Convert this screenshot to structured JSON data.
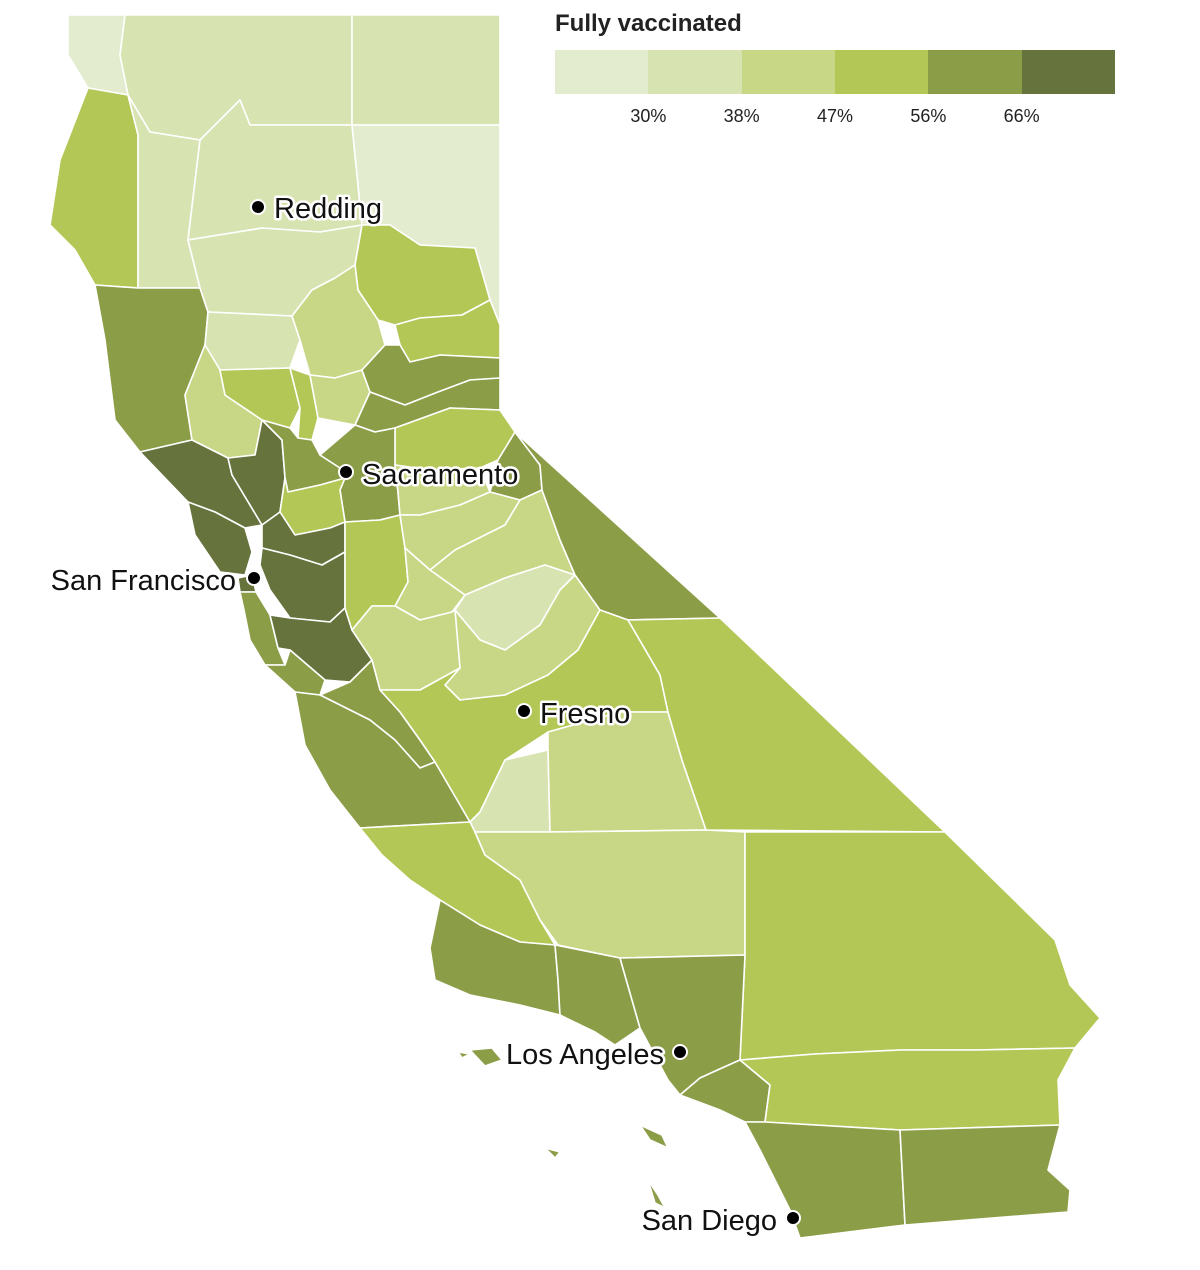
{
  "legend": {
    "title": "Fully vaccinated",
    "colors": [
      "#e3ecce",
      "#d8e3b2",
      "#c8d785",
      "#b2c756",
      "#8c9d48",
      "#66733c"
    ],
    "tick_labels": [
      "30%",
      "38%",
      "47%",
      "56%",
      "66%"
    ]
  },
  "cities": [
    {
      "name": "Redding",
      "label": "Redding"
    },
    {
      "name": "Sacramento",
      "label": "Sacramento"
    },
    {
      "name": "San Francisco",
      "label": "San Francisco"
    },
    {
      "name": "Fresno",
      "label": "Fresno"
    },
    {
      "name": "Los Angeles",
      "label": "Los Angeles"
    },
    {
      "name": "San Diego",
      "label": "San Diego"
    }
  ],
  "counties": [
    {
      "name": "Del Norte",
      "bin": 0
    },
    {
      "name": "Siskiyou",
      "bin": 1
    },
    {
      "name": "Modoc",
      "bin": 1
    },
    {
      "name": "Humboldt",
      "bin": 3
    },
    {
      "name": "Trinity",
      "bin": 1
    },
    {
      "name": "Shasta",
      "bin": 1
    },
    {
      "name": "Lassen",
      "bin": 0
    },
    {
      "name": "Mendocino",
      "bin": 4
    },
    {
      "name": "Tehama",
      "bin": 1
    },
    {
      "name": "Plumas",
      "bin": 3
    },
    {
      "name": "Glenn",
      "bin": 1
    },
    {
      "name": "Butte",
      "bin": 2
    },
    {
      "name": "Sierra",
      "bin": 3
    },
    {
      "name": "Lake",
      "bin": 2
    },
    {
      "name": "Colusa",
      "bin": 3
    },
    {
      "name": "Sutter",
      "bin": 3
    },
    {
      "name": "Yuba",
      "bin": 2
    },
    {
      "name": "Nevada",
      "bin": 4
    },
    {
      "name": "Placer",
      "bin": 4
    },
    {
      "name": "El Dorado",
      "bin": 3
    },
    {
      "name": "Alpine",
      "bin": 4
    },
    {
      "name": "Sonoma",
      "bin": 5
    },
    {
      "name": "Napa",
      "bin": 5
    },
    {
      "name": "Yolo",
      "bin": 4
    },
    {
      "name": "Sacramento",
      "bin": 4
    },
    {
      "name": "Solano",
      "bin": 3
    },
    {
      "name": "Marin",
      "bin": 5
    },
    {
      "name": "Contra Costa",
      "bin": 5
    },
    {
      "name": "San Francisco",
      "bin": 5
    },
    {
      "name": "San Mateo",
      "bin": 4
    },
    {
      "name": "Alameda",
      "bin": 5
    },
    {
      "name": "Santa Clara",
      "bin": 5
    },
    {
      "name": "Santa Cruz",
      "bin": 4
    },
    {
      "name": "San Joaquin",
      "bin": 3
    },
    {
      "name": "Amador",
      "bin": 2
    },
    {
      "name": "Calaveras",
      "bin": 2
    },
    {
      "name": "Tuolumne",
      "bin": 2
    },
    {
      "name": "Stanislaus",
      "bin": 2
    },
    {
      "name": "Mariposa",
      "bin": 1
    },
    {
      "name": "Merced",
      "bin": 2
    },
    {
      "name": "Madera",
      "bin": 2
    },
    {
      "name": "Mono",
      "bin": 4
    },
    {
      "name": "San Benito",
      "bin": 4
    },
    {
      "name": "Monterey",
      "bin": 4
    },
    {
      "name": "Fresno",
      "bin": 3
    },
    {
      "name": "Kings",
      "bin": 1
    },
    {
      "name": "Tulare",
      "bin": 2
    },
    {
      "name": "Inyo",
      "bin": 3
    },
    {
      "name": "San Luis Obispo",
      "bin": 3
    },
    {
      "name": "Kern",
      "bin": 2
    },
    {
      "name": "San Bernardino",
      "bin": 3
    },
    {
      "name": "Santa Barbara",
      "bin": 4
    },
    {
      "name": "Ventura",
      "bin": 4
    },
    {
      "name": "Los Angeles",
      "bin": 4
    },
    {
      "name": "Orange",
      "bin": 4
    },
    {
      "name": "Riverside",
      "bin": 3
    },
    {
      "name": "San Diego",
      "bin": 4
    },
    {
      "name": "Imperial",
      "bin": 4
    },
    {
      "name": "Channel Islands",
      "bin": 4
    }
  ]
}
